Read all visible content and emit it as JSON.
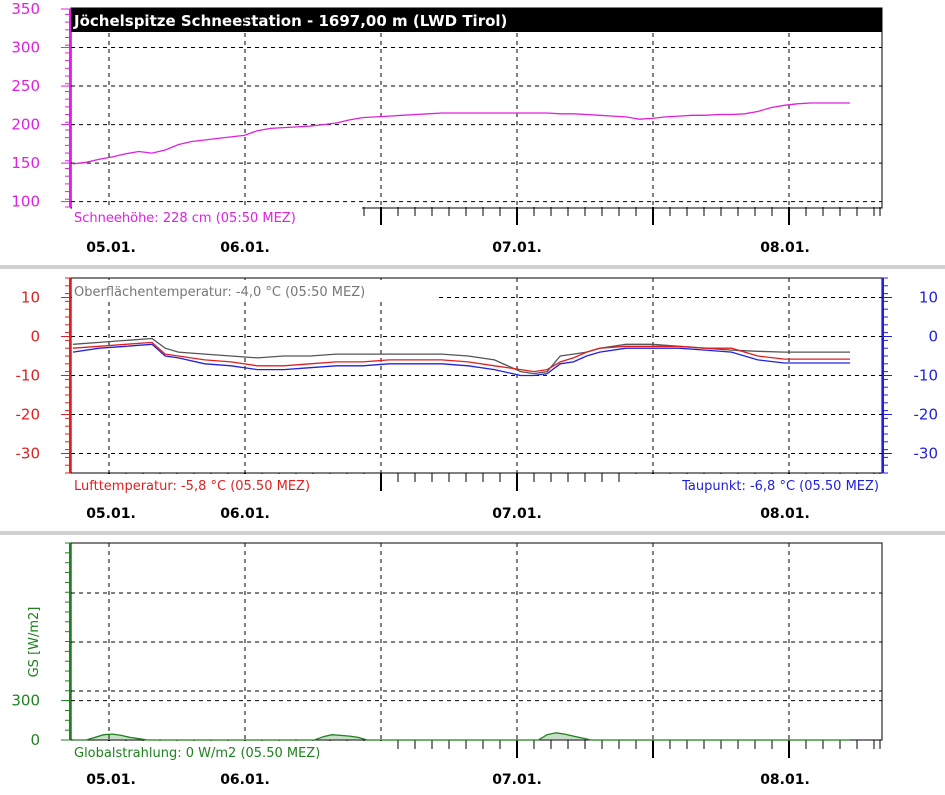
{
  "charts": [
    {
      "id": "snow",
      "title": "Jöchelspitze Schneestation - 1697,00 m (LWD Tirol)",
      "status_label": "Schneehöhe: 228 cm (05:50 MEZ)",
      "left_axis_color": "#e020e0"
    },
    {
      "id": "temp",
      "top_note": "Oberflächentemperatur: -4,0 °C (05:50 MEZ)",
      "left_status": "Lufttemperatur: -5,8 °C (05.50 MEZ)",
      "right_status": "Taupunkt: -6,8 °C (05.50 MEZ)",
      "left_axis_color": "#e02020",
      "right_axis_color": "#2020e0"
    },
    {
      "id": "radiation",
      "ylabel": "GS [W/m2]",
      "status_label": "Globalstrahlung: 0 W/m2 (05.50 MEZ)",
      "axis_color": "#208020"
    }
  ],
  "chart_data": [
    {
      "type": "line",
      "title": "Jöchelspitze Schneestation - 1697,00 m (LWD Tirol)",
      "x_unit": "hours",
      "x_tick_labels": [
        "05.01.",
        "06.01.",
        "07.01.",
        "08.01."
      ],
      "ylim": [
        100,
        350
      ],
      "y_ticks": [
        100,
        150,
        200,
        250,
        300,
        350
      ],
      "grid": true,
      "series": [
        {
          "name": "Schneehöhe",
          "color": "#e020e0",
          "x": [
            0,
            6,
            12,
            18,
            24,
            30,
            36,
            42,
            48,
            54,
            60,
            66,
            72,
            78,
            84,
            90,
            96,
            102,
            108,
            114,
            120,
            126,
            132,
            138,
            144,
            150,
            156,
            162,
            168,
            174,
            180,
            186,
            192,
            198,
            204,
            210,
            216,
            222,
            228,
            234,
            240,
            246,
            252,
            258,
            264,
            270,
            276,
            282,
            288,
            294,
            300,
            306,
            312,
            318,
            324,
            330,
            336,
            342,
            348,
            354
          ],
          "values": [
            149,
            151,
            155,
            158,
            162,
            165,
            163,
            167,
            174,
            178,
            180,
            182,
            184,
            186,
            192,
            195,
            196,
            197,
            198,
            200,
            202,
            206,
            209,
            210,
            211,
            212,
            213,
            214,
            215,
            215,
            215,
            215,
            215,
            215,
            215,
            215,
            215,
            214,
            214,
            213,
            212,
            211,
            210,
            207,
            208,
            210,
            211,
            212,
            212,
            213,
            213,
            214,
            217,
            222,
            225,
            227,
            228,
            228,
            228,
            228
          ]
        }
      ]
    },
    {
      "type": "line",
      "x_unit": "hours",
      "x_tick_labels": [
        "05.01.",
        "06.01.",
        "07.01.",
        "08.01."
      ],
      "ylim": [
        -35,
        15
      ],
      "y_ticks": [
        -30,
        -20,
        -10,
        0,
        10
      ],
      "grid": true,
      "series": [
        {
          "name": "Oberflächentemperatur",
          "color": "#555555",
          "x": [
            0,
            12,
            24,
            36,
            42,
            48,
            60,
            72,
            84,
            96,
            108,
            120,
            132,
            144,
            156,
            168,
            180,
            192,
            204,
            210,
            216,
            222,
            228,
            234,
            240,
            252,
            264,
            276,
            288,
            300,
            312,
            324,
            336,
            354
          ],
          "values": [
            -2,
            -1.5,
            -1,
            -0.5,
            -3,
            -4,
            -4.5,
            -5,
            -5.5,
            -5,
            -5,
            -4.5,
            -4.5,
            -4.5,
            -4.5,
            -4.5,
            -5,
            -6,
            -9,
            -9.5,
            -9,
            -5,
            -4.5,
            -4,
            -3,
            -2,
            -2,
            -2.5,
            -3,
            -3.5,
            -3.8,
            -4,
            -4,
            -4
          ]
        },
        {
          "name": "Lufttemperatur",
          "color": "#e02020",
          "x": [
            0,
            12,
            24,
            36,
            42,
            48,
            60,
            72,
            84,
            96,
            108,
            120,
            132,
            144,
            156,
            168,
            180,
            192,
            204,
            210,
            216,
            222,
            228,
            234,
            240,
            252,
            264,
            276,
            288,
            300,
            312,
            324,
            336,
            354
          ],
          "values": [
            -3,
            -2.5,
            -2,
            -1.5,
            -4.5,
            -5,
            -6,
            -6.5,
            -7.5,
            -7.5,
            -7,
            -6.5,
            -6.5,
            -6,
            -6,
            -6,
            -6.5,
            -7.5,
            -8.5,
            -9,
            -8.5,
            -6.5,
            -5.5,
            -4,
            -3,
            -2.5,
            -2.5,
            -2.5,
            -3,
            -3,
            -5,
            -5.8,
            -5.8,
            -5.8
          ]
        },
        {
          "name": "Taupunkt",
          "color": "#2020e0",
          "x": [
            0,
            12,
            24,
            36,
            42,
            48,
            60,
            72,
            84,
            96,
            108,
            120,
            132,
            144,
            156,
            168,
            180,
            192,
            204,
            210,
            216,
            222,
            228,
            234,
            240,
            252,
            264,
            276,
            288,
            300,
            312,
            324,
            336,
            354
          ],
          "values": [
            -4,
            -3,
            -2.5,
            -2,
            -5,
            -5.5,
            -7,
            -7.5,
            -8.5,
            -8.5,
            -8,
            -7.5,
            -7.5,
            -7,
            -7,
            -7,
            -7.5,
            -8.5,
            -10,
            -10,
            -9.5,
            -7,
            -6.5,
            -5,
            -4,
            -3,
            -3,
            -3,
            -3.5,
            -4,
            -6,
            -6.8,
            -6.8,
            -6.8
          ]
        }
      ]
    },
    {
      "type": "area",
      "x_unit": "hours",
      "x_tick_labels": [
        "05.01.",
        "06.01.",
        "07.01.",
        "08.01."
      ],
      "ylim": [
        0,
        1500
      ],
      "y_ticks": [
        0,
        300
      ],
      "ylabel": "GS [W/m2]",
      "grid": true,
      "series": [
        {
          "name": "Globalstrahlung",
          "color": "#208020",
          "x": [
            0,
            6,
            10,
            14,
            18,
            22,
            26,
            30,
            34,
            40,
            60,
            100,
            110,
            114,
            118,
            122,
            126,
            130,
            134,
            140,
            160,
            200,
            212,
            216,
            220,
            224,
            228,
            232,
            236,
            240,
            260,
            300,
            320,
            354
          ],
          "values": [
            0,
            0,
            20,
            40,
            45,
            35,
            20,
            10,
            0,
            0,
            0,
            0,
            0,
            25,
            40,
            35,
            30,
            20,
            0,
            0,
            0,
            0,
            0,
            40,
            55,
            45,
            30,
            15,
            0,
            0,
            0,
            0,
            0,
            0
          ]
        }
      ]
    }
  ]
}
